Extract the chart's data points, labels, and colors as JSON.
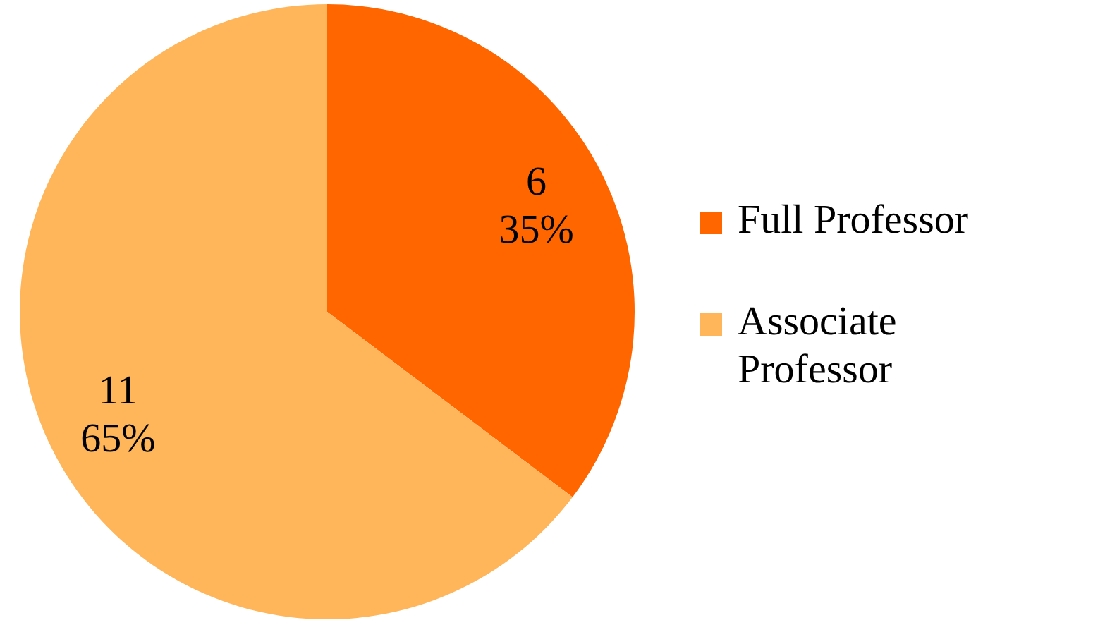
{
  "chart_data": {
    "type": "pie",
    "categories": [
      "Full Professor",
      "Associate Professor"
    ],
    "values": [
      6,
      11
    ],
    "colors": [
      "#ff6600",
      "#ffb55a"
    ],
    "value_labels": [
      "6\n35%",
      "11\n65%"
    ],
    "legend": "right"
  }
}
